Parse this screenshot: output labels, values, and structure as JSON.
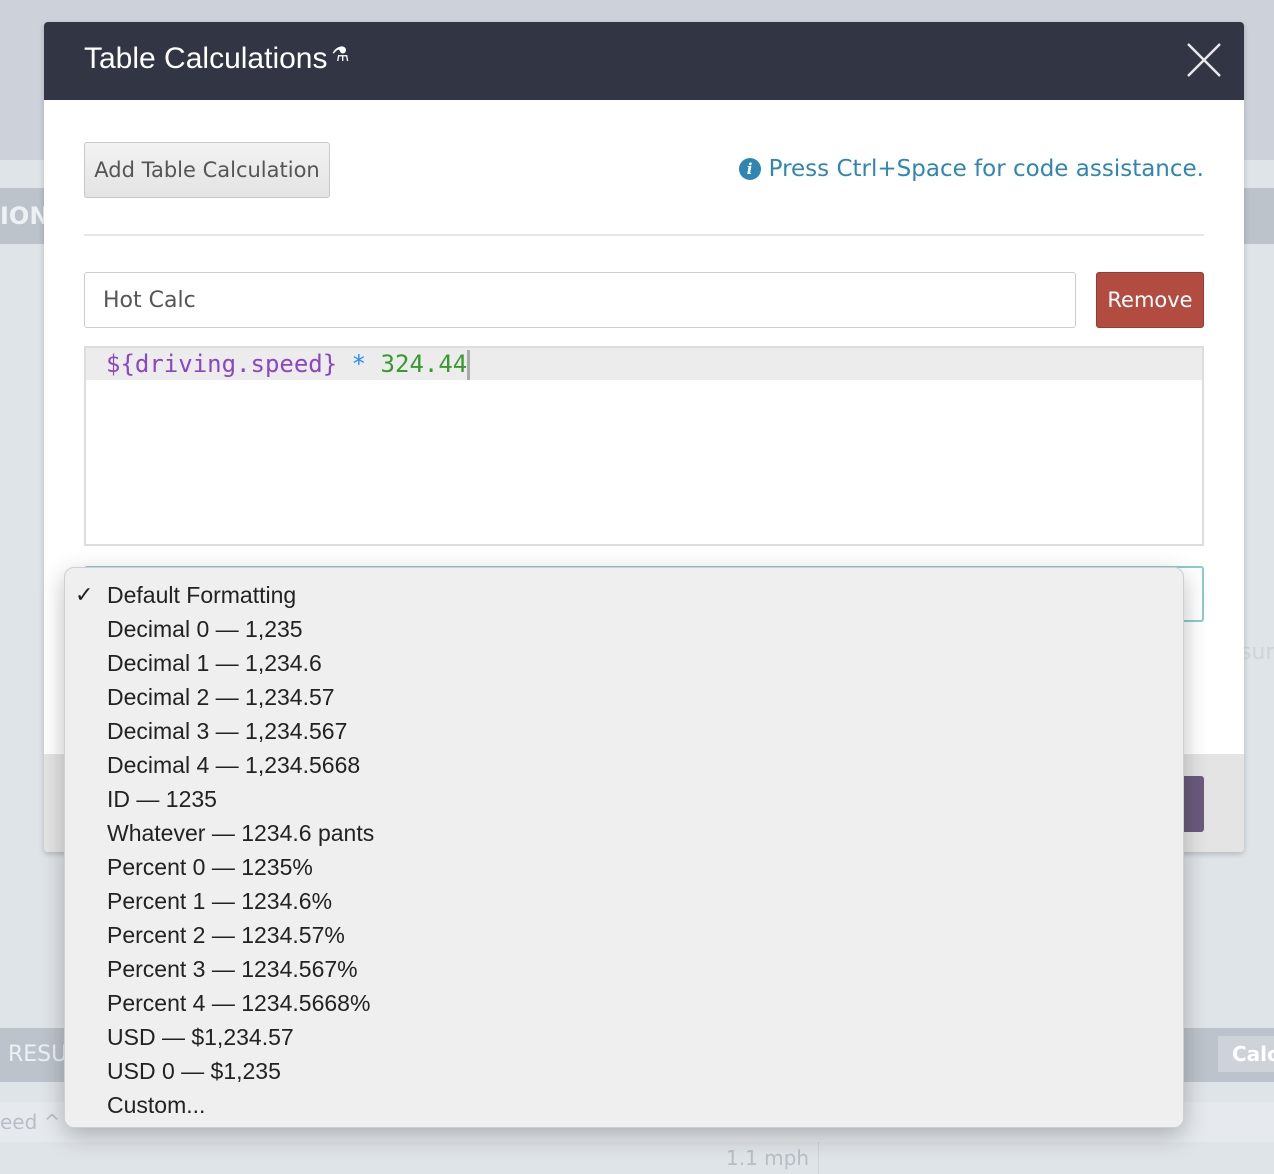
{
  "background": {
    "band_label": "ION",
    "results_label": "RESU",
    "calc_label": "Calc",
    "column_label": "eed ^",
    "cell_value": "1.1 mph",
    "partial_text": "sure"
  },
  "modal": {
    "title": "Table Calculations",
    "title_icon": "flask-icon",
    "add_button": "Add Table Calculation",
    "hint": "Press Ctrl+Space for code assistance.",
    "hint_icon": "info-icon",
    "calc_name": "Hot Calc",
    "remove_button": "Remove",
    "expression": {
      "variable": "${driving.speed}",
      "operator": "*",
      "number": "324.44"
    },
    "colors": {
      "header": "#323644",
      "remove": "#b34c40",
      "hint": "#2f86b3",
      "save": "#6b5a7e"
    }
  },
  "format_dropdown": {
    "selected": "Default Formatting",
    "options": [
      "Default Formatting",
      "Decimal 0 — 1,235",
      "Decimal 1 — 1,234.6",
      "Decimal 2 — 1,234.57",
      "Decimal 3 — 1,234.567",
      "Decimal 4 — 1,234.5668",
      "ID — 1235",
      "Whatever — 1234.6 pants",
      "Percent 0 — 1235%",
      "Percent 1 — 1234.6%",
      "Percent 2 — 1234.57%",
      "Percent 3 — 1234.567%",
      "Percent 4 — 1234.5668%",
      "USD — $1,234.57",
      "USD 0 — $1,235",
      "Custom..."
    ]
  }
}
